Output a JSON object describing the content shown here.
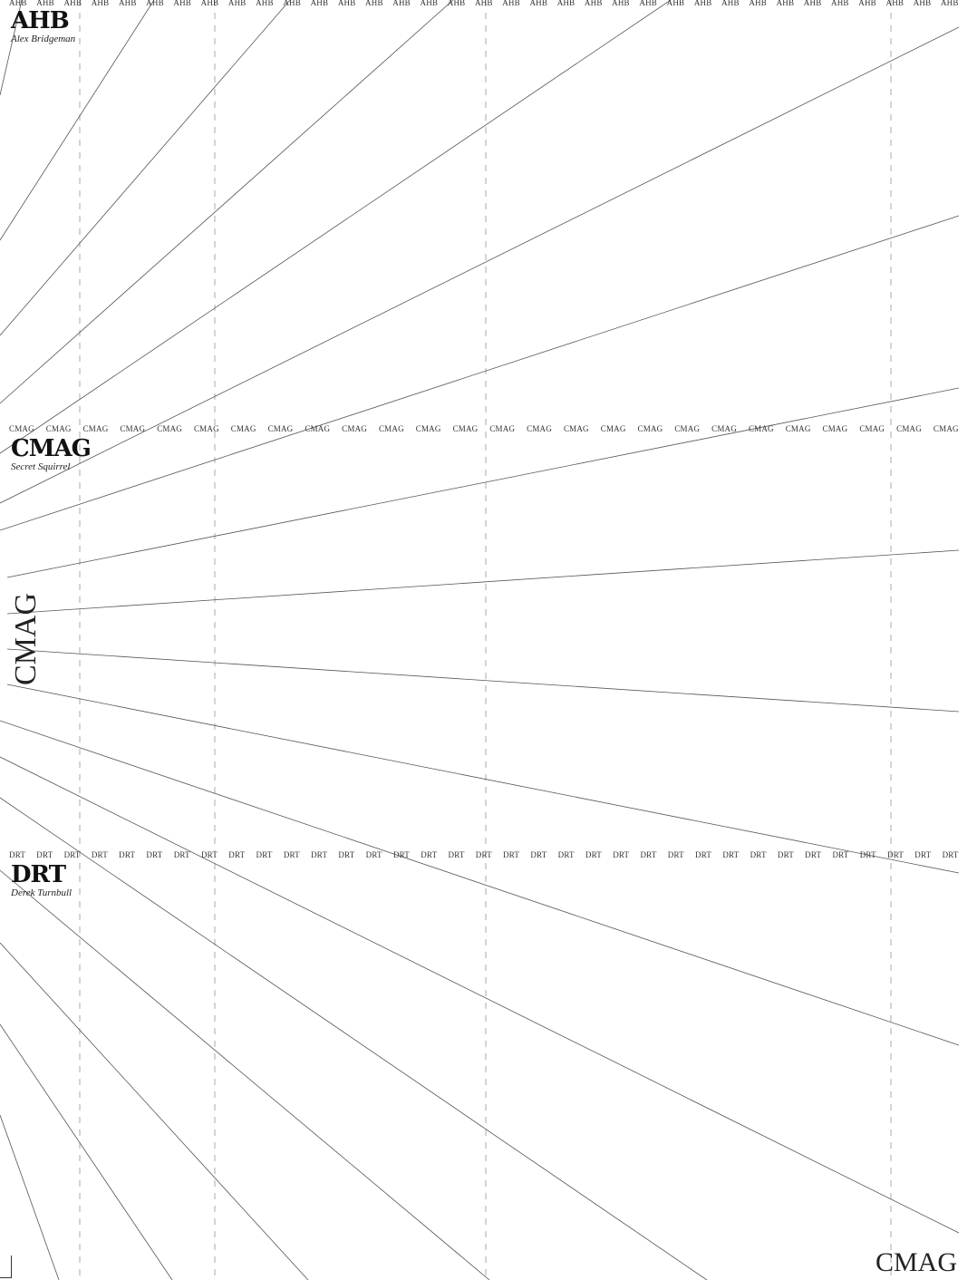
{
  "sections": [
    {
      "repeat_text": "AHB",
      "mark": "AHB",
      "name": "Alex Bridgeman"
    },
    {
      "repeat_text": "CMAG",
      "mark": "CMAG",
      "name": "Secret Squirrel"
    },
    {
      "repeat_text": "DRT",
      "mark": "DRT",
      "name": "Derek Turnbull"
    }
  ],
  "side_label": "CMAG",
  "corner_label": "CMAG",
  "colors": {
    "rays": "#555555",
    "dashed_guides": "#aaaaaa",
    "text": "#1a1a1a"
  }
}
